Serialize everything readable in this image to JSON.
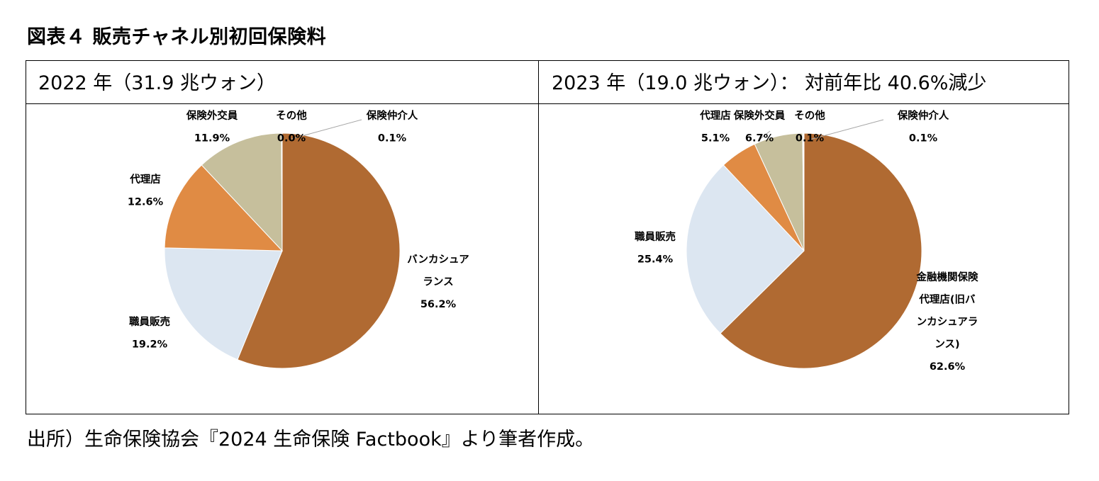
{
  "figure_title": "図表４ 販売チャネル別初回保険料",
  "source_note": "出所）生命保険協会『2024 生命保険 Factbook』より筆者作成。",
  "colors": {
    "bancassurance": "#B06A32",
    "staff_sales": "#DCE6F1",
    "agency": "#E08B44",
    "overseas": "#C6BF9C",
    "other": "#C6BF9C",
    "broker": "#C6BF9C",
    "slice_border": "#ffffff",
    "leader_line": "#A6A6A6"
  },
  "chart_data": [
    {
      "type": "pie",
      "title": "2022 年（31.9 兆ウォン）",
      "slices": [
        {
          "name_lines": [
            "バンカシュア",
            "ランス"
          ],
          "value": 56.2,
          "value_label": "56.2%",
          "color": "#B06A32"
        },
        {
          "name_lines": [
            "職員販売"
          ],
          "value": 19.2,
          "value_label": "19.2%",
          "color": "#DCE6F1"
        },
        {
          "name_lines": [
            "代理店"
          ],
          "value": 12.6,
          "value_label": "12.6%",
          "color": "#E08B44"
        },
        {
          "name_lines": [
            "保険外交員"
          ],
          "value": 11.9,
          "value_label": "11.9%",
          "color": "#C6BF9C"
        },
        {
          "name_lines": [
            "その他"
          ],
          "value": 0.0,
          "value_label": "0.0%",
          "color": "#C6BF9C"
        },
        {
          "name_lines": [
            "保険仲介人"
          ],
          "value": 0.1,
          "value_label": "0.1%",
          "color": "#C6BF9C"
        }
      ]
    },
    {
      "type": "pie",
      "title": "2023 年（19.0 兆ウォン）： 対前年比 40.6%減少",
      "slices": [
        {
          "name_lines": [
            "金融機関保険",
            "代理店(旧バ",
            "ンカシュアラ",
            "ンス)"
          ],
          "value": 62.6,
          "value_label": "62.6%",
          "color": "#B06A32"
        },
        {
          "name_lines": [
            "職員販売"
          ],
          "value": 25.4,
          "value_label": "25.4%",
          "color": "#DCE6F1"
        },
        {
          "name_lines": [
            "代理店"
          ],
          "value": 5.1,
          "value_label": "5.1%",
          "color": "#E08B44"
        },
        {
          "name_lines": [
            "保険外交員"
          ],
          "value": 6.7,
          "value_label": "6.7%",
          "color": "#C6BF9C"
        },
        {
          "name_lines": [
            "その他"
          ],
          "value": 0.1,
          "value_label": "0.1%",
          "color": "#C6BF9C"
        },
        {
          "name_lines": [
            "保険仲介人"
          ],
          "value": 0.1,
          "value_label": "0.1%",
          "color": "#C6BF9C"
        }
      ]
    }
  ]
}
